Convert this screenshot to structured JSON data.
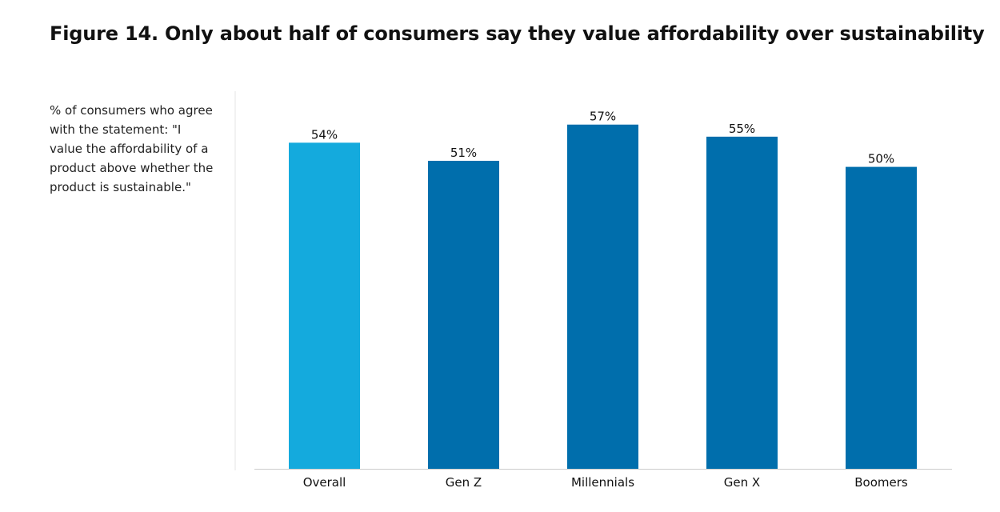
{
  "title": "Figure 14. Only about half of consumers say they value affordability over sustainability",
  "subtitle": "% of consumers who agree with the statement: \"I value the affordability of a product above whether the product is sustainable.\"",
  "colors": {
    "highlight_bar": "#14aadd",
    "bar": "#006eac",
    "axis_line": "#cccccc",
    "divider": "#e6e6e6"
  },
  "chart_data": {
    "type": "bar",
    "categories": [
      "Overall",
      "Gen Z",
      "Millennials",
      "Gen X",
      "Boomers"
    ],
    "values": [
      54,
      51,
      57,
      55,
      50
    ],
    "data_labels": [
      "54%",
      "51%",
      "57%",
      "55%",
      "50%"
    ],
    "highlight": "Overall",
    "ylim": [
      0,
      62
    ],
    "grid": false,
    "legend": "none",
    "unit": "%"
  }
}
